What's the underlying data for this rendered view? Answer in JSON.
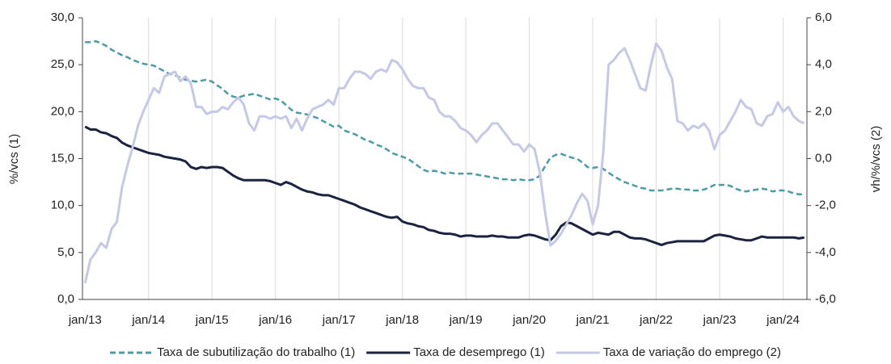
{
  "chart_data": {
    "type": "line",
    "ylabel": "%/vcs (1)",
    "y2label": "vh/%/vcs (2)",
    "categories": [
      "jan/13",
      null,
      null,
      null,
      null,
      null,
      null,
      null,
      null,
      null,
      null,
      null,
      "jan/14",
      null,
      null,
      null,
      null,
      null,
      null,
      null,
      null,
      null,
      null,
      null,
      "jan/15",
      null,
      null,
      null,
      null,
      null,
      null,
      null,
      null,
      null,
      null,
      null,
      "jan/16",
      null,
      null,
      null,
      null,
      null,
      null,
      null,
      null,
      null,
      null,
      null,
      "jan/17",
      null,
      null,
      null,
      null,
      null,
      null,
      null,
      null,
      null,
      null,
      null,
      "jan/18",
      null,
      null,
      null,
      null,
      null,
      null,
      null,
      null,
      null,
      null,
      null,
      "jan/19",
      null,
      null,
      null,
      null,
      null,
      null,
      null,
      null,
      null,
      null,
      null,
      "jan/20",
      null,
      null,
      null,
      null,
      null,
      null,
      null,
      null,
      null,
      null,
      null,
      "jan/21",
      null,
      null,
      null,
      null,
      null,
      null,
      null,
      null,
      null,
      null,
      null,
      "jan/22",
      null,
      null,
      null,
      null,
      null,
      null,
      null,
      null,
      null,
      null,
      null,
      "jan/23",
      null,
      null,
      null,
      null,
      null,
      null,
      null,
      null,
      null,
      null,
      null,
      "jan/24",
      null,
      null,
      null,
      null
    ],
    "series": [
      {
        "name": "Taxa de subutilização do trabalho (1)",
        "color": "#4a9ca6",
        "dashed": true,
        "values": [
          27.4,
          27.4,
          27.5,
          27.3,
          27.0,
          26.6,
          26.3,
          26.0,
          25.8,
          25.5,
          25.3,
          25.1,
          25.0,
          24.9,
          24.6,
          24.3,
          24.0,
          23.9,
          23.6,
          23.4,
          23.3,
          23.2,
          23.3,
          23.4,
          23.2,
          22.8,
          22.4,
          21.9,
          21.6,
          21.5,
          21.7,
          21.8,
          21.9,
          21.7,
          21.5,
          21.3,
          21.4,
          21.2,
          20.7,
          20.2,
          19.9,
          19.8,
          19.7,
          19.5,
          19.3,
          19.0,
          18.7,
          18.4,
          18.5,
          18.0,
          17.8,
          17.6,
          17.3,
          17.0,
          16.8,
          16.5,
          16.3,
          16.0,
          15.6,
          15.4,
          15.2,
          15.0,
          14.6,
          14.2,
          13.8,
          13.6,
          13.7,
          13.6,
          13.4,
          13.5,
          13.4,
          13.4,
          13.4,
          13.4,
          13.3,
          13.2,
          13.1,
          13.0,
          12.9,
          12.8,
          12.8,
          12.7,
          12.8,
          12.7,
          12.7,
          12.8,
          13.2,
          14.2,
          15.1,
          15.4,
          15.5,
          15.3,
          15.1,
          15.0,
          14.6,
          14.1,
          14.0,
          14.1,
          13.9,
          13.5,
          13.1,
          12.8,
          12.5,
          12.3,
          12.1,
          11.9,
          11.8,
          11.6,
          11.6,
          11.6,
          11.7,
          11.8,
          11.8,
          11.7,
          11.7,
          11.6,
          11.6,
          11.7,
          11.9,
          12.2,
          12.2,
          12.2,
          12.1,
          11.8,
          11.6,
          11.5,
          11.6,
          11.7,
          11.8,
          11.7,
          11.5,
          11.6,
          11.6,
          11.5,
          11.3,
          11.2,
          11.2
        ]
      },
      {
        "name": "Taxa de desemprego (1)",
        "color": "#1c2340",
        "values": [
          18.4,
          18.1,
          18.1,
          17.8,
          17.7,
          17.4,
          17.2,
          16.7,
          16.4,
          16.2,
          16.0,
          15.8,
          15.6,
          15.5,
          15.4,
          15.2,
          15.1,
          15.0,
          14.9,
          14.7,
          14.1,
          13.9,
          14.1,
          14.0,
          14.1,
          14.1,
          14.0,
          13.6,
          13.2,
          12.9,
          12.7,
          12.7,
          12.7,
          12.7,
          12.7,
          12.6,
          12.4,
          12.2,
          12.5,
          12.3,
          12.0,
          11.7,
          11.5,
          11.4,
          11.2,
          11.1,
          11.1,
          10.9,
          10.7,
          10.5,
          10.3,
          10.1,
          9.8,
          9.6,
          9.4,
          9.2,
          9.0,
          8.8,
          8.7,
          8.8,
          8.3,
          8.1,
          8.0,
          7.8,
          7.7,
          7.4,
          7.3,
          7.1,
          7.0,
          7.0,
          6.9,
          6.7,
          6.8,
          6.8,
          6.7,
          6.7,
          6.7,
          6.8,
          6.7,
          6.7,
          6.6,
          6.6,
          6.6,
          6.8,
          6.9,
          6.8,
          6.6,
          6.4,
          6.3,
          6.9,
          7.8,
          8.2,
          8.1,
          7.8,
          7.5,
          7.2,
          6.9,
          7.1,
          7.0,
          6.9,
          7.2,
          7.2,
          6.9,
          6.6,
          6.5,
          6.5,
          6.4,
          6.2,
          6.0,
          5.8,
          6.0,
          6.1,
          6.2,
          6.2,
          6.2,
          6.2,
          6.2,
          6.2,
          6.5,
          6.8,
          6.9,
          6.8,
          6.7,
          6.5,
          6.4,
          6.3,
          6.3,
          6.5,
          6.7,
          6.6,
          6.6,
          6.6,
          6.6,
          6.6,
          6.6,
          6.5,
          6.6
        ]
      },
      {
        "name": "Taxa de variação do emprego (2)",
        "color": "#c5c8e6",
        "axis": "y2",
        "values": [
          -5.3,
          -4.3,
          -4.0,
          -3.6,
          -3.8,
          -3.0,
          -2.7,
          -1.2,
          -0.3,
          0.5,
          1.4,
          2.0,
          2.5,
          3.0,
          2.8,
          3.5,
          3.6,
          3.7,
          3.3,
          3.5,
          3.2,
          2.2,
          2.2,
          1.9,
          2.0,
          2.0,
          2.2,
          2.1,
          2.4,
          2.6,
          2.3,
          1.5,
          1.2,
          1.8,
          1.8,
          1.7,
          1.8,
          1.7,
          1.8,
          1.3,
          1.7,
          1.2,
          1.7,
          2.1,
          2.2,
          2.3,
          2.5,
          2.3,
          3.0,
          3.0,
          3.4,
          3.7,
          3.7,
          3.6,
          3.4,
          3.7,
          3.8,
          3.7,
          4.2,
          4.1,
          3.8,
          3.4,
          3.1,
          3.0,
          3.0,
          2.6,
          2.5,
          2.0,
          1.8,
          1.8,
          1.6,
          1.3,
          1.2,
          1.0,
          0.7,
          1.0,
          1.2,
          1.5,
          1.5,
          1.2,
          0.9,
          0.6,
          0.6,
          0.3,
          0.6,
          0.4,
          -0.6,
          -2.3,
          -3.7,
          -3.5,
          -3.2,
          -2.8,
          -2.4,
          -1.9,
          -1.5,
          -1.8,
          -2.8,
          -2.0,
          0.3,
          4.0,
          4.2,
          4.5,
          4.7,
          4.2,
          3.6,
          3.0,
          2.9,
          4.0,
          4.9,
          4.6,
          3.9,
          3.4,
          1.6,
          1.5,
          1.2,
          1.4,
          1.3,
          1.5,
          1.2,
          0.4,
          1.0,
          1.2,
          1.6,
          2.0,
          2.5,
          2.2,
          2.1,
          1.5,
          1.4,
          1.8,
          1.9,
          2.4,
          2.0,
          2.2,
          1.8,
          1.6,
          1.5
        ]
      }
    ],
    "ylim": [
      0,
      30
    ],
    "yticks": [
      {
        "value": 0,
        "label": "0,0"
      },
      {
        "value": 5,
        "label": "5,0"
      },
      {
        "value": 10,
        "label": "10,0"
      },
      {
        "value": 15,
        "label": "15,0"
      },
      {
        "value": 20,
        "label": "20,0"
      },
      {
        "value": 25,
        "label": "25,0"
      },
      {
        "value": 30,
        "label": "30,0"
      }
    ],
    "y2lim": [
      -6,
      6
    ],
    "y2ticks": [
      {
        "value": -6,
        "label": "-6,0"
      },
      {
        "value": -4,
        "label": "-4,0"
      },
      {
        "value": -2,
        "label": "-2,0"
      },
      {
        "value": 0,
        "label": "0,0"
      },
      {
        "value": 2,
        "label": "2,0"
      },
      {
        "value": 4,
        "label": "4,0"
      },
      {
        "value": 6,
        "label": "6,0"
      }
    ],
    "grid": "x",
    "legend": "bottom"
  }
}
